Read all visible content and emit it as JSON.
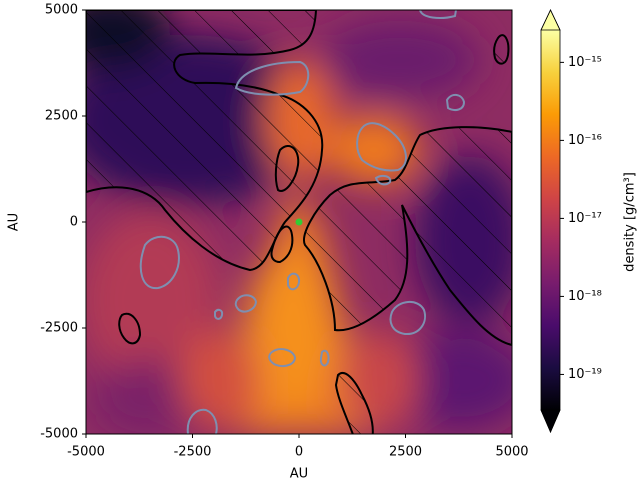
{
  "chart_data": {
    "type": "image",
    "xlabel": "AU",
    "ylabel": "AU",
    "xlim": [
      -5000,
      5000
    ],
    "ylim": [
      -5000,
      5000
    ],
    "xticks": [
      -5000,
      -2500,
      0,
      2500,
      5000
    ],
    "yticks": [
      -5000,
      -2500,
      0,
      2500,
      5000
    ],
    "marker": {
      "x": 0,
      "y": 0,
      "color": "#33cc33"
    },
    "colorbar": {
      "label": "density [g/cm³]",
      "scale": "log",
      "lim": [
        3.5e-20,
        2.6e-15
      ],
      "extend": "both",
      "ticks": [
        {
          "value": 1e-19,
          "label": "10⁻¹⁹"
        },
        {
          "value": 1e-18,
          "label": "10⁻¹⁸"
        },
        {
          "value": 1e-17,
          "label": "10⁻¹⁷"
        },
        {
          "value": 1e-16,
          "label": "10⁻¹⁶"
        },
        {
          "value": 1e-15,
          "label": "10⁻¹⁵"
        }
      ],
      "colormap": [
        "#000004",
        "#1b0c41",
        "#4a0c6b",
        "#781c6d",
        "#a52c60",
        "#cf4446",
        "#ed6925",
        "#fb9b06",
        "#f7d13d",
        "#fcffa4"
      ]
    }
  }
}
